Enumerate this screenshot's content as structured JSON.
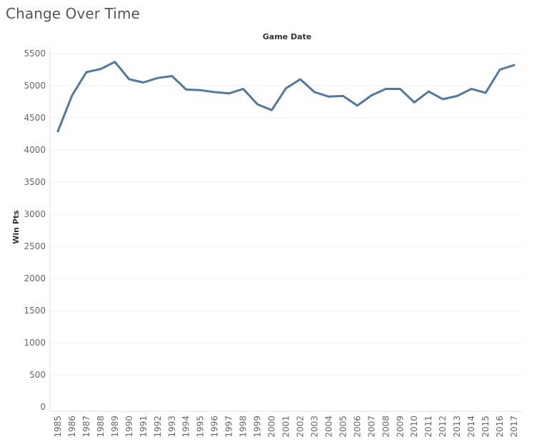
{
  "title": "Change Over Time",
  "colors": {
    "line": "#4e79a7",
    "title_text": "#555555"
  },
  "chart_data": {
    "type": "line",
    "title": "",
    "xlabel": "Game Date",
    "ylabel": "Win Pts",
    "xaxis_position": "top",
    "grid": true,
    "ylim": [
      0,
      5500
    ],
    "yticks": [
      0,
      500,
      1000,
      1500,
      2000,
      2500,
      3000,
      3500,
      4000,
      4500,
      5000,
      5500
    ],
    "categories": [
      "1985",
      "1986",
      "1987",
      "1988",
      "1989",
      "1990",
      "1991",
      "1992",
      "1993",
      "1994",
      "1995",
      "1996",
      "1997",
      "1998",
      "1999",
      "2000",
      "2001",
      "2002",
      "2003",
      "2004",
      "2005",
      "2006",
      "2007",
      "2008",
      "2009",
      "2010",
      "2011",
      "2012",
      "2013",
      "2014",
      "2015",
      "2016",
      "2017"
    ],
    "series": [
      {
        "values": [
          4290,
          4850,
          5210,
          5260,
          5370,
          5100,
          5050,
          5120,
          5150,
          4940,
          4930,
          4900,
          4880,
          4950,
          4710,
          4620,
          4960,
          5100,
          4900,
          4830,
          4840,
          4690,
          4850,
          4950,
          4950,
          4740,
          4910,
          4790,
          4840,
          4950,
          4890,
          5250,
          5320
        ]
      }
    ]
  }
}
